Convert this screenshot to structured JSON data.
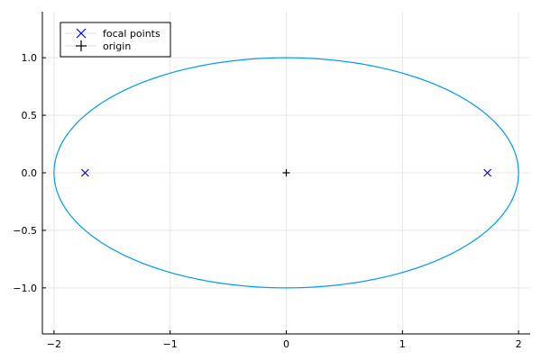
{
  "chart_data": {
    "type": "line",
    "title": "",
    "xlabel": "",
    "ylabel": "",
    "xlim": [
      -2.1,
      2.1
    ],
    "ylim": [
      -1.4,
      1.4
    ],
    "xticks": [
      -2,
      -1,
      0,
      1,
      2
    ],
    "yticks": [
      -1.0,
      -0.5,
      0.0,
      0.5,
      1.0
    ],
    "xtick_labels": [
      "−2",
      "−1",
      "0",
      "1",
      "2"
    ],
    "ytick_labels": [
      "−1.0",
      "−0.5",
      "0.0",
      "0.5",
      "1.0"
    ],
    "grid": true,
    "legend_position": "top-left",
    "series": [
      {
        "type": "parametric-ellipse",
        "semi_axis_x": 2,
        "semi_axis_y": 1,
        "center": [
          0,
          0
        ],
        "color": "#009AF9"
      },
      {
        "name": "focal points",
        "type": "scatter",
        "marker": "x",
        "color": "#0000FF",
        "points": [
          [
            -1.732,
            0
          ],
          [
            1.732,
            0
          ]
        ]
      },
      {
        "name": "origin",
        "type": "scatter",
        "marker": "+",
        "color": "#000000",
        "points": [
          [
            0,
            0
          ]
        ]
      }
    ]
  }
}
